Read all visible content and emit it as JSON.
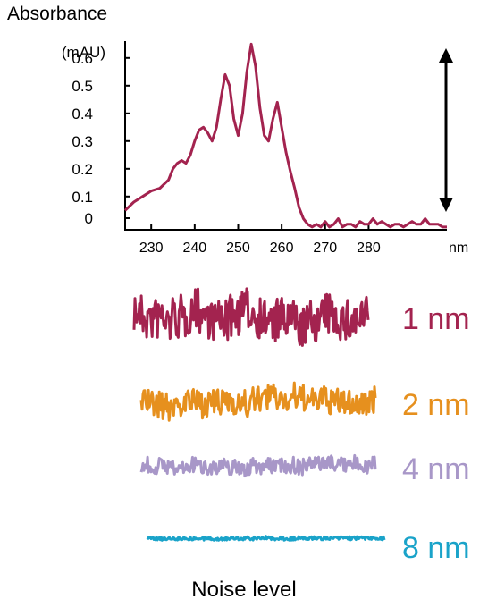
{
  "chart_data": [
    {
      "type": "line",
      "title": "Absorbance",
      "ylabel": "(mAU)",
      "xlabel": "nm",
      "xlim": [
        224,
        298
      ],
      "ylim": [
        -0.02,
        0.68
      ],
      "xticks": [
        230,
        240,
        250,
        260,
        270,
        280
      ],
      "yticks": [
        0,
        0.1,
        0.2,
        0.3,
        0.4,
        0.5,
        0.6
      ],
      "ytick_labels": [
        "0",
        "0.1",
        "0.2",
        "0.3",
        "0.4",
        "0.5",
        "0.6"
      ],
      "series": [
        {
          "color": "#a3234f",
          "x": [
            224,
            226,
            228,
            230,
            232,
            234,
            235,
            236,
            237,
            238,
            239,
            240,
            241,
            242,
            243,
            244,
            245,
            246,
            247,
            248,
            249,
            250,
            251,
            252,
            253,
            254,
            255,
            256,
            257,
            258,
            259,
            260,
            261,
            262,
            263,
            264,
            265,
            266,
            267,
            268,
            269,
            270,
            271,
            272,
            273,
            274,
            275,
            276,
            277,
            278,
            279,
            280,
            281,
            282,
            283,
            284,
            285,
            286,
            287,
            288,
            289,
            290,
            291,
            292,
            293,
            294,
            295,
            296,
            297,
            298
          ],
          "values": [
            0.05,
            0.08,
            0.1,
            0.12,
            0.13,
            0.16,
            0.2,
            0.22,
            0.23,
            0.22,
            0.25,
            0.3,
            0.34,
            0.35,
            0.33,
            0.3,
            0.35,
            0.45,
            0.54,
            0.5,
            0.38,
            0.32,
            0.4,
            0.55,
            0.65,
            0.57,
            0.42,
            0.32,
            0.3,
            0.38,
            0.44,
            0.35,
            0.26,
            0.19,
            0.13,
            0.06,
            0.02,
            0.0,
            -0.01,
            0.0,
            -0.01,
            0.01,
            -0.01,
            0.0,
            0.02,
            -0.01,
            0.0,
            0.0,
            -0.01,
            0.01,
            0.0,
            0.0,
            0.02,
            0.0,
            0.01,
            0.0,
            -0.01,
            0.0,
            0.0,
            -0.01,
            0.0,
            0.01,
            0.0,
            0.0,
            0.02,
            0.0,
            0.0,
            0.0,
            -0.01,
            -0.01
          ]
        }
      ],
      "annotation": "double-headed arrow spanning the 0 to peak range"
    },
    {
      "type": "line",
      "title": "Noise level",
      "series": [
        {
          "name": "1 nm",
          "color": "#a3234f",
          "amplitude": 1.0
        },
        {
          "name": "2 nm",
          "color": "#e6901e",
          "amplitude": 0.5
        },
        {
          "name": "4 nm",
          "color": "#a897c8",
          "amplitude": 0.3
        },
        {
          "name": "8 nm",
          "color": "#1aa3c9",
          "amplitude": 0.05
        }
      ]
    }
  ]
}
